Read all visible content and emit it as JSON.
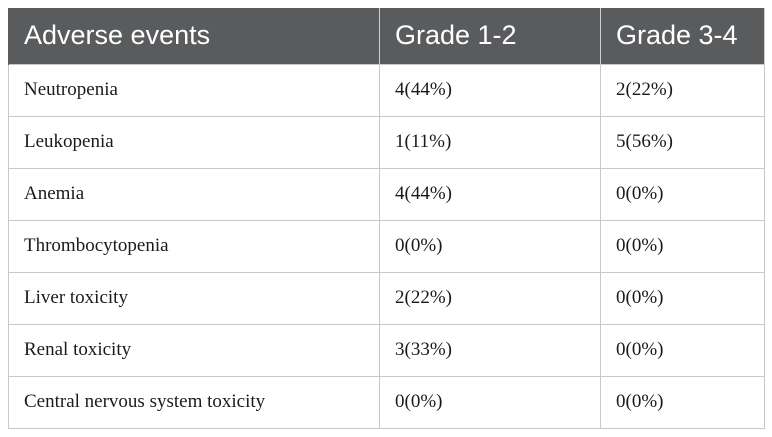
{
  "table": {
    "headers": [
      "Adverse events",
      "Grade 1-2",
      "Grade 3-4"
    ],
    "rows": [
      [
        "Neutropenia",
        "4(44%)",
        "2(22%)"
      ],
      [
        "Leukopenia",
        "1(11%)",
        "5(56%)"
      ],
      [
        "Anemia",
        "4(44%)",
        "0(0%)"
      ],
      [
        "Thrombocytopenia",
        "0(0%)",
        "0(0%)"
      ],
      [
        "Liver toxicity",
        "2(22%)",
        "0(0%)"
      ],
      [
        "Renal toxicity",
        "3(33%)",
        "0(0%)"
      ],
      [
        "Central nervous system toxicity",
        "0(0%)",
        "0(0%)"
      ]
    ]
  },
  "colors": {
    "header_bg": "#5a5b5d",
    "header_text": "#ffffff",
    "grid": "#c8c8c8"
  }
}
